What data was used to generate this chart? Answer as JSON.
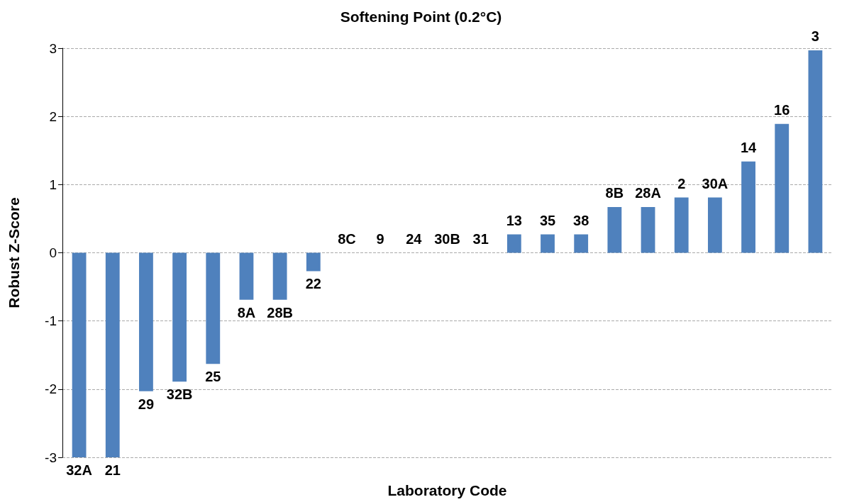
{
  "chart_data": {
    "type": "bar",
    "title": "Softening Point (0.2°C)",
    "xlabel": "Laboratory Code",
    "ylabel": "Robust Z-Score",
    "categories": [
      "32A",
      "21",
      "29",
      "32B",
      "25",
      "8A",
      "28B",
      "22",
      "8C",
      "9",
      "24",
      "30B",
      "31",
      "13",
      "35",
      "38",
      "8B",
      "28A",
      "2",
      "30A",
      "14",
      "16",
      "3"
    ],
    "values": [
      -3,
      -3,
      -2.03,
      -1.89,
      -1.63,
      -0.69,
      -0.69,
      -0.27,
      0,
      0,
      0,
      0,
      0,
      0.27,
      0.27,
      0.27,
      0.67,
      0.67,
      0.81,
      0.81,
      1.34,
      1.89,
      2.97
    ],
    "color": "#4f81bd",
    "ylim": [
      -3,
      3
    ],
    "yticks": [
      -3,
      -2,
      -1,
      0,
      1,
      2,
      3
    ],
    "grid": "y",
    "tick_labels": "y"
  }
}
